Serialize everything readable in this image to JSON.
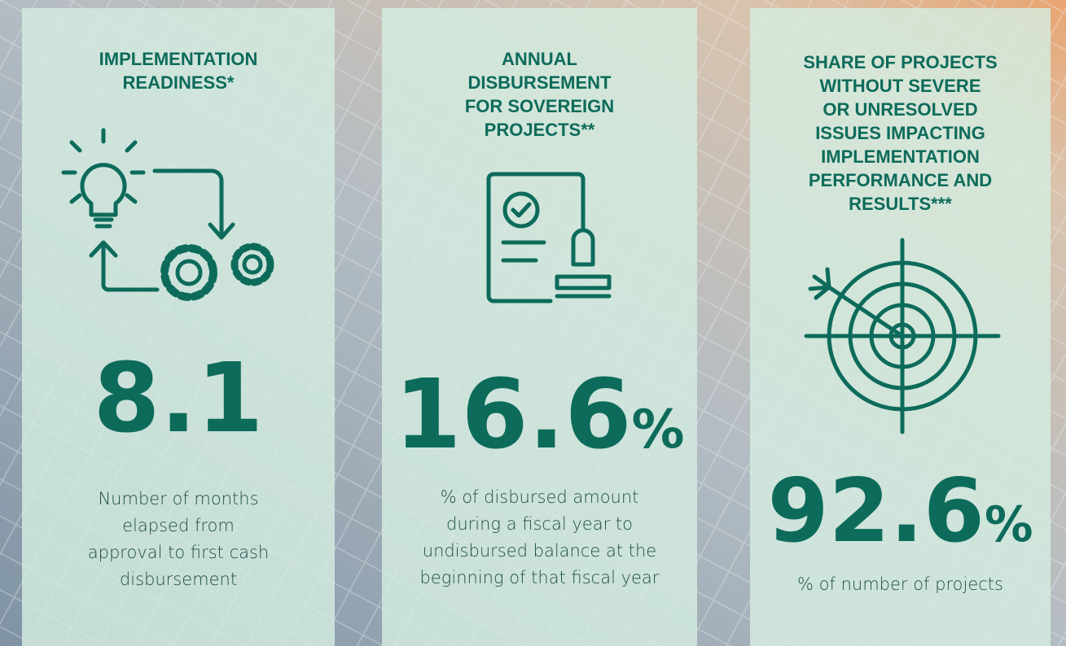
{
  "cards": [
    {
      "title": [
        "IMPLEMENTATION",
        "READINESS*"
      ],
      "value": "8.1",
      "unit": null,
      "description": [
        "Number of months",
        "elapsed from",
        "approval to first cash",
        "disbursement"
      ]
    },
    {
      "title": [
        "ANNUAL",
        "DISBURSEMENT",
        "FOR SOVEREIGN",
        "PROJECTS**"
      ],
      "value": "16.6",
      "unit": "%",
      "description": [
        "% of disbursed amount",
        "during a fiscal year to",
        "undisbursed balance at the",
        "beginning of that fiscal year"
      ]
    },
    {
      "title": [
        "SHARE OF PROJECTS",
        "WITHOUT SEVERE",
        "OR UNRESOLVED",
        "ISSUES IMPACTING",
        "IMPLEMENTATION",
        "PERFORMANCE AND",
        "RESULTS***"
      ],
      "value": "92.6",
      "unit": "%",
      "description": [
        "% of number of projects"
      ]
    }
  ]
}
